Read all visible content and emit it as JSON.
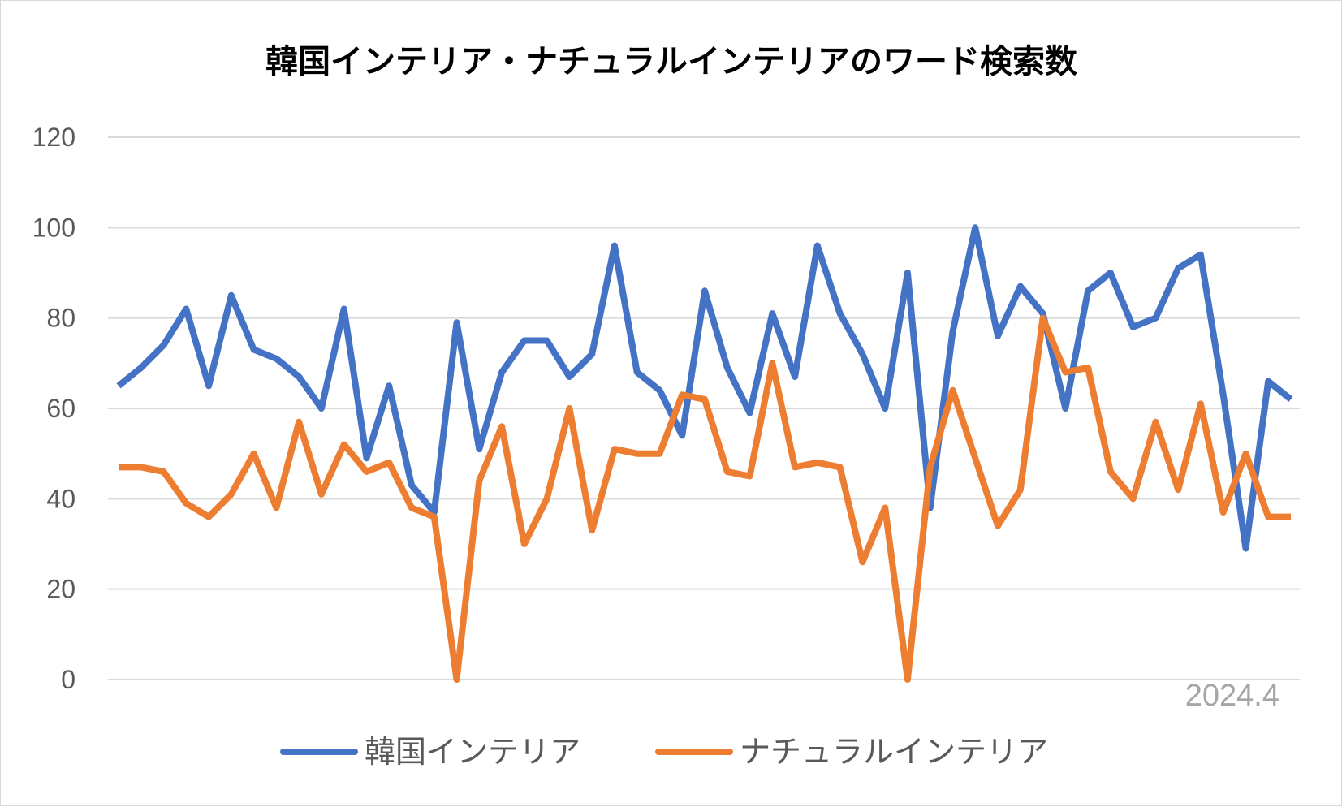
{
  "chart_data": {
    "type": "line",
    "title": "韓国インテリア・ナチュラルインテリアのワード検索数",
    "xlabel": "",
    "ylabel": "",
    "ylim": [
      0,
      120
    ],
    "yticks": [
      "0",
      "20",
      "40",
      "60",
      "80",
      "100",
      "120"
    ],
    "grid": true,
    "legend": "bottom",
    "annotation": "2024.4",
    "series": [
      {
        "name": "韓国インテリア",
        "color": "#4472c4",
        "values": [
          65,
          69,
          74,
          82,
          65,
          85,
          73,
          71,
          67,
          60,
          82,
          49,
          65,
          43,
          37,
          79,
          51,
          68,
          75,
          75,
          67,
          72,
          96,
          68,
          64,
          54,
          86,
          69,
          59,
          81,
          67,
          96,
          81,
          72,
          60,
          90,
          38,
          77,
          100,
          76,
          87,
          81,
          60,
          86,
          90,
          78,
          80,
          91,
          94,
          63,
          29,
          66,
          62
        ]
      },
      {
        "name": "ナチュラルインテリア",
        "color": "#ed7d31",
        "values": [
          47,
          47,
          46,
          39,
          36,
          41,
          50,
          38,
          57,
          41,
          52,
          46,
          48,
          38,
          36,
          0,
          44,
          56,
          30,
          40,
          60,
          33,
          51,
          50,
          50,
          63,
          62,
          46,
          45,
          70,
          47,
          48,
          47,
          26,
          38,
          0,
          47,
          64,
          49,
          34,
          42,
          80,
          68,
          69,
          46,
          40,
          57,
          42,
          61,
          37,
          50,
          36,
          36
        ]
      }
    ]
  }
}
